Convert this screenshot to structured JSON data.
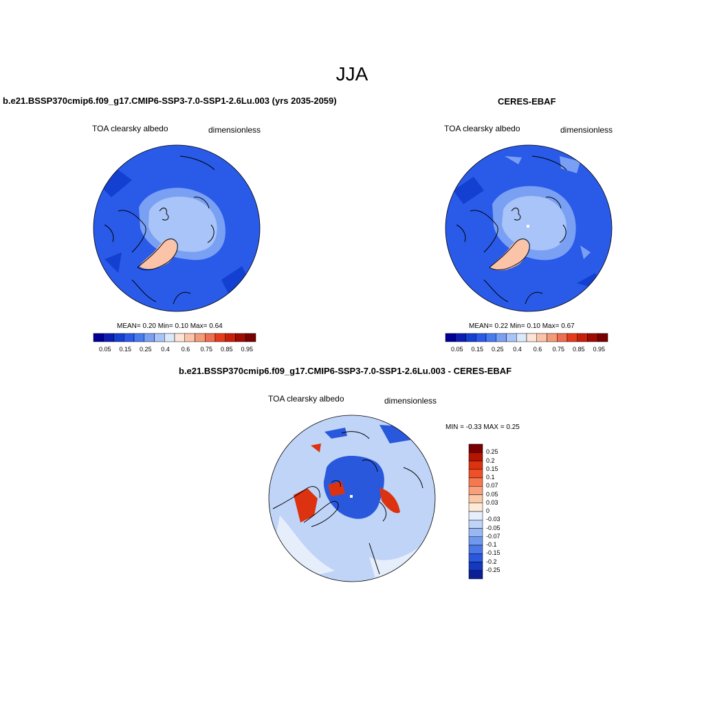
{
  "season": "JJA",
  "panels": [
    {
      "id": "model",
      "title": "b.e21.BSSP370cmip6.f09_g17.CMIP6-SSP3-7.0-SSP1-2.6Lu.003 (yrs 2035-2059)",
      "variable": "TOA clearsky albedo",
      "units": "dimensionless",
      "stats_text": "MEAN=   0.20  Min=    0.10  Max=    0.64",
      "mean": 0.2,
      "min": 0.1,
      "max": 0.64
    },
    {
      "id": "obs",
      "title": "CERES-EBAF",
      "variable": "TOA clearsky albedo",
      "units": "dimensionless",
      "stats_text": "MEAN=   0.22  Min=    0.10  Max=    0.67",
      "mean": 0.22,
      "min": 0.1,
      "max": 0.67
    },
    {
      "id": "diff",
      "title": "b.e21.BSSP370cmip6.f09_g17.CMIP6-SSP3-7.0-SSP1-2.6Lu.003 - CERES-EBAF",
      "variable": "TOA clearsky albedo",
      "units": "dimensionless",
      "stats_text": "MIN =  -0.33 MAX =   0.25",
      "min": -0.33,
      "max": 0.25
    }
  ],
  "abs_colorbar": {
    "colors": [
      "#000096",
      "#0a1eb4",
      "#1440d2",
      "#2a5ae8",
      "#4a7af0",
      "#7aa0f4",
      "#a8c4f8",
      "#dce8fc",
      "#fde4d4",
      "#fbc4a8",
      "#f59a78",
      "#ef6e4e",
      "#e63c1e",
      "#c81e0a",
      "#a00a00",
      "#780000"
    ],
    "labels": [
      "0.05",
      "0.15",
      "0.25",
      "0.4",
      "0.6",
      "0.75",
      "0.85",
      "0.95"
    ]
  },
  "diff_colorbar": {
    "colors": [
      "#780000",
      "#b41400",
      "#dc3210",
      "#f05028",
      "#f57850",
      "#f8a07c",
      "#fbc8a8",
      "#fdebd8",
      "#e6eefc",
      "#c0d4f8",
      "#98b8f4",
      "#7098ee",
      "#4a78e8",
      "#2a58dc",
      "#1438c0",
      "#0a1e96"
    ],
    "labels": [
      "0.25",
      "0.2",
      "0.15",
      "0.1",
      "0.07",
      "0.05",
      "0.03",
      "0",
      "-0.03",
      "-0.05",
      "-0.07",
      "-0.1",
      "-0.15",
      "-0.2",
      "-0.25"
    ]
  },
  "map_colors": {
    "ocean": "#2a5ae8",
    "ocean_dark": "#1440d2",
    "ice_light": "#a8c4f8",
    "ice_mid": "#7aa0f4",
    "greenland": "#fbc4a8",
    "diff_bg": "#c0d4f8",
    "diff_neutral": "#e6eefc",
    "diff_neg": "#2a58dc",
    "diff_pos": "#dc3210",
    "coast": "#000000"
  }
}
